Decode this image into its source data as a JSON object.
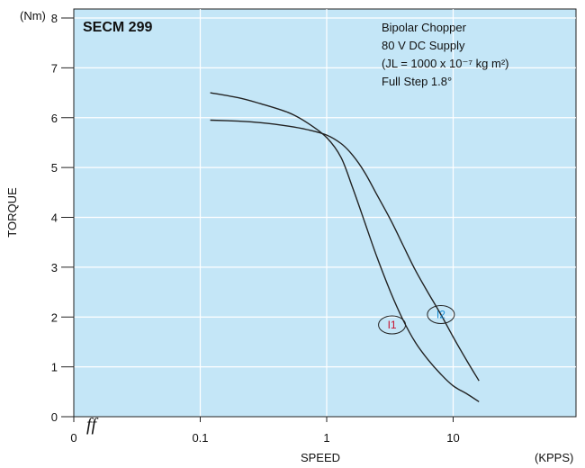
{
  "chart_data": {
    "type": "line",
    "title": "SECM 299",
    "xlabel": "SPEED",
    "xunit": "(KPPS)",
    "ylabel": "TORQUE",
    "yunit": "(Nm)",
    "x_scale": "log",
    "xlim": [
      0.01,
      60
    ],
    "ylim": [
      0,
      8
    ],
    "x_ticks": [
      {
        "value": 0.01,
        "label": "0"
      },
      {
        "value": 0.1,
        "label": "0.1"
      },
      {
        "value": 1,
        "label": "1"
      },
      {
        "value": 10,
        "label": "10"
      }
    ],
    "y_ticks": [
      0,
      1,
      2,
      3,
      4,
      5,
      6,
      7,
      8
    ],
    "break_mark": "ff",
    "grid": true,
    "notes": [
      "Bipolar Chopper",
      "80 V DC Supply",
      "(JL = 1000 x 10⁻⁷ kg m²)",
      "Full Step 1.8°"
    ],
    "series": [
      {
        "name": "I1",
        "color": "#c8102e",
        "x": [
          0.12,
          0.2,
          0.3,
          0.5,
          0.7,
          1.0,
          1.3,
          1.6,
          2.0,
          2.5,
          3.2,
          4.0,
          5.0,
          6.3,
          8.0,
          10,
          13,
          16
        ],
        "y": [
          6.5,
          6.4,
          6.28,
          6.1,
          5.9,
          5.6,
          5.2,
          4.6,
          3.9,
          3.2,
          2.5,
          1.95,
          1.5,
          1.15,
          0.85,
          0.62,
          0.45,
          0.3
        ]
      },
      {
        "name": "I2",
        "color": "#1a8fd6",
        "x": [
          0.12,
          0.2,
          0.3,
          0.5,
          0.7,
          1.0,
          1.3,
          1.6,
          2.0,
          2.5,
          3.2,
          4.0,
          5.0,
          6.3,
          8.0,
          10,
          13,
          16
        ],
        "y": [
          5.95,
          5.93,
          5.9,
          5.83,
          5.76,
          5.65,
          5.48,
          5.25,
          4.9,
          4.45,
          3.95,
          3.45,
          2.95,
          2.5,
          2.05,
          1.6,
          1.1,
          0.72
        ]
      }
    ]
  }
}
